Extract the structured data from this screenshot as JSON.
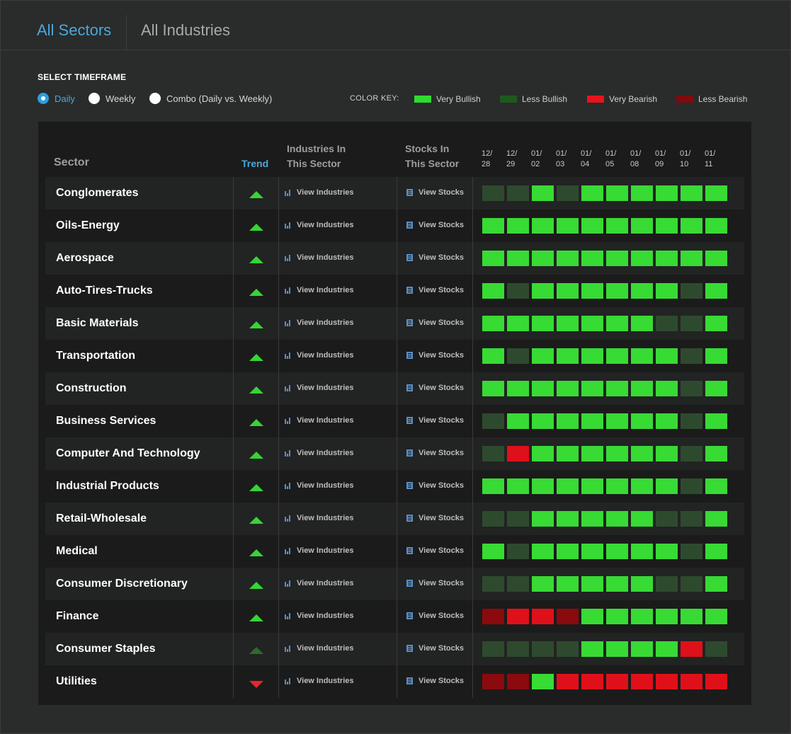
{
  "tabs": [
    {
      "label": "All Sectors",
      "active": true
    },
    {
      "label": "All Industries",
      "active": false
    }
  ],
  "timeframe": {
    "title": "SELECT TIMEFRAME",
    "options": [
      {
        "label": "Daily",
        "checked": true
      },
      {
        "label": "Weekly",
        "checked": false
      },
      {
        "label": "Combo (Daily vs. Weekly)",
        "checked": false
      }
    ]
  },
  "color_key": {
    "title": "COLOR KEY:",
    "items": [
      {
        "label": "Very Bullish",
        "color": "#2fdb2f"
      },
      {
        "label": "Less Bullish",
        "color": "#1e5a1e"
      },
      {
        "label": "Very Bearish",
        "color": "#e8141a"
      },
      {
        "label": "Less Bearish",
        "color": "#7e0b0e"
      }
    ]
  },
  "colors": {
    "G": "#37db34",
    "g": "#2e4a2e",
    "R": "#e0101a",
    "r": "#8a0a0d"
  },
  "table": {
    "headers": {
      "sector": "Sector",
      "trend": "Trend",
      "industries": [
        "Industries In",
        "This Sector"
      ],
      "stocks": [
        "Stocks In",
        "This Sector"
      ]
    },
    "dates": [
      [
        "12/",
        "28"
      ],
      [
        "12/",
        "29"
      ],
      [
        "01/",
        "02"
      ],
      [
        "01/",
        "03"
      ],
      [
        "01/",
        "04"
      ],
      [
        "01/",
        "05"
      ],
      [
        "01/",
        "08"
      ],
      [
        "01/",
        "09"
      ],
      [
        "01/",
        "10"
      ],
      [
        "01/",
        "11"
      ]
    ],
    "view_industries_label": "View Industries",
    "view_stocks_label": "View Stocks",
    "rows": [
      {
        "sector": "Conglomerates",
        "trend": "up",
        "cells": [
          "g",
          "g",
          "G",
          "g",
          "G",
          "G",
          "G",
          "G",
          "G",
          "G"
        ]
      },
      {
        "sector": "Oils-Energy",
        "trend": "up",
        "cells": [
          "G",
          "G",
          "G",
          "G",
          "G",
          "G",
          "G",
          "G",
          "G",
          "G"
        ]
      },
      {
        "sector": "Aerospace",
        "trend": "up",
        "cells": [
          "G",
          "G",
          "G",
          "G",
          "G",
          "G",
          "G",
          "G",
          "G",
          "G"
        ]
      },
      {
        "sector": "Auto-Tires-Trucks",
        "trend": "up",
        "cells": [
          "G",
          "g",
          "G",
          "G",
          "G",
          "G",
          "G",
          "G",
          "g",
          "G"
        ]
      },
      {
        "sector": "Basic Materials",
        "trend": "up",
        "cells": [
          "G",
          "G",
          "G",
          "G",
          "G",
          "G",
          "G",
          "g",
          "g",
          "G"
        ]
      },
      {
        "sector": "Transportation",
        "trend": "up",
        "cells": [
          "G",
          "g",
          "G",
          "G",
          "G",
          "G",
          "G",
          "G",
          "g",
          "G"
        ]
      },
      {
        "sector": "Construction",
        "trend": "up",
        "cells": [
          "G",
          "G",
          "G",
          "G",
          "G",
          "G",
          "G",
          "G",
          "g",
          "G"
        ]
      },
      {
        "sector": "Business Services",
        "trend": "up",
        "cells": [
          "g",
          "G",
          "G",
          "G",
          "G",
          "G",
          "G",
          "G",
          "g",
          "G"
        ]
      },
      {
        "sector": "Computer And Technology",
        "trend": "up",
        "cells": [
          "g",
          "R",
          "G",
          "G",
          "G",
          "G",
          "G",
          "G",
          "g",
          "G"
        ]
      },
      {
        "sector": "Industrial Products",
        "trend": "up",
        "cells": [
          "G",
          "G",
          "G",
          "G",
          "G",
          "G",
          "G",
          "G",
          "g",
          "G"
        ]
      },
      {
        "sector": "Retail-Wholesale",
        "trend": "up",
        "cells": [
          "g",
          "g",
          "G",
          "G",
          "G",
          "G",
          "G",
          "g",
          "g",
          "G"
        ]
      },
      {
        "sector": "Medical",
        "trend": "up",
        "cells": [
          "G",
          "g",
          "G",
          "G",
          "G",
          "G",
          "G",
          "G",
          "g",
          "G"
        ]
      },
      {
        "sector": "Consumer Discretionary",
        "trend": "up",
        "cells": [
          "g",
          "g",
          "G",
          "G",
          "G",
          "G",
          "G",
          "g",
          "g",
          "G"
        ]
      },
      {
        "sector": "Finance",
        "trend": "up",
        "cells": [
          "r",
          "R",
          "R",
          "r",
          "G",
          "G",
          "G",
          "G",
          "G",
          "G"
        ]
      },
      {
        "sector": "Consumer Staples",
        "trend": "up-dim",
        "cells": [
          "g",
          "g",
          "g",
          "g",
          "G",
          "G",
          "G",
          "G",
          "R",
          "g"
        ]
      },
      {
        "sector": "Utilities",
        "trend": "down",
        "cells": [
          "r",
          "r",
          "G",
          "R",
          "R",
          "R",
          "R",
          "R",
          "R",
          "R"
        ]
      }
    ]
  }
}
